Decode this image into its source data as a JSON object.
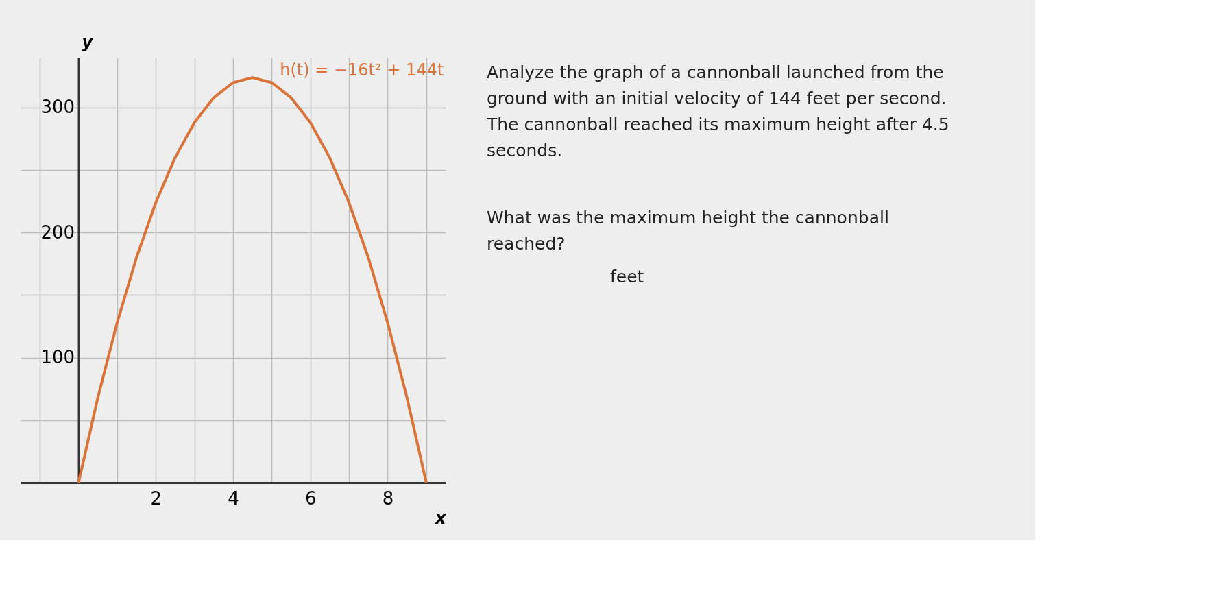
{
  "chart_data": {
    "type": "line",
    "xlabel": "x",
    "ylabel": "y",
    "x": [
      0,
      0.5,
      1,
      1.5,
      2,
      2.5,
      3,
      3.5,
      4,
      4.5,
      5,
      5.5,
      6,
      6.5,
      7,
      7.5,
      8,
      8.5,
      9
    ],
    "series": [
      {
        "name": "h(t) = −16t² + 144t",
        "color": "#d9733a",
        "values": [
          0,
          68,
          128,
          180,
          224,
          260,
          288,
          308,
          320,
          324,
          320,
          308,
          288,
          260,
          224,
          180,
          128,
          68,
          0
        ]
      }
    ],
    "xlim": [
      -1.5,
      9.5
    ],
    "ylim": [
      0,
      340
    ],
    "xticks": [
      {
        "value": -1,
        "label": null
      },
      {
        "value": 1,
        "label": null
      },
      2,
      {
        "value": 3,
        "label": null
      },
      4,
      {
        "value": 5,
        "label": null
      },
      6,
      {
        "value": 7,
        "label": null
      },
      8,
      {
        "value": 9,
        "label": null
      }
    ],
    "yticks": [
      {
        "value": 50,
        "label": null
      },
      100,
      {
        "value": 150,
        "label": null
      },
      200,
      {
        "value": 250,
        "label": null
      },
      300
    ],
    "grid": true,
    "marker": "none",
    "line_style": "solid",
    "annotations": [
      "Analyze the graph of a cannonball launched from the\nground with an initial velocity of 144 feet per second.\nThe cannonball reached its maximum height after 4.5\nseconds.",
      "What was the maximum height the cannonball\nreached?",
      "feet"
    ]
  }
}
